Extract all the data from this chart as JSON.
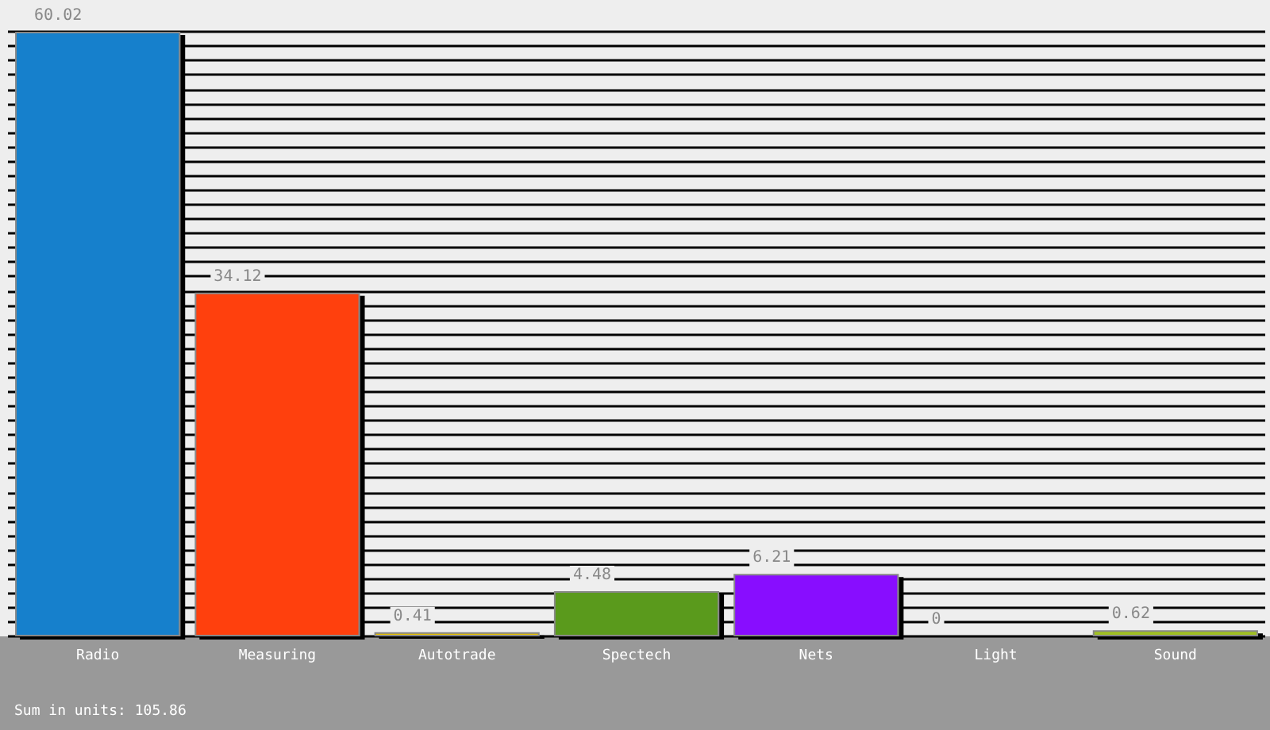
{
  "chart_data": {
    "type": "bar",
    "categories": [
      "Radio",
      "Measuring",
      "Autotrade",
      "Spectech",
      "Nets",
      "Light",
      "Sound"
    ],
    "values": [
      60.02,
      34.12,
      0.41,
      4.48,
      6.21,
      0,
      0.62
    ],
    "colors": [
      "#1380cc",
      "#ff4010",
      "#e8c000",
      "#5a9a1a",
      "#8811ff",
      "#888888",
      "#a0c020"
    ],
    "tick_labels": "x",
    "data_labels": true,
    "grid": "y",
    "annotations": [
      "Sum in units: 105.86"
    ]
  }
}
